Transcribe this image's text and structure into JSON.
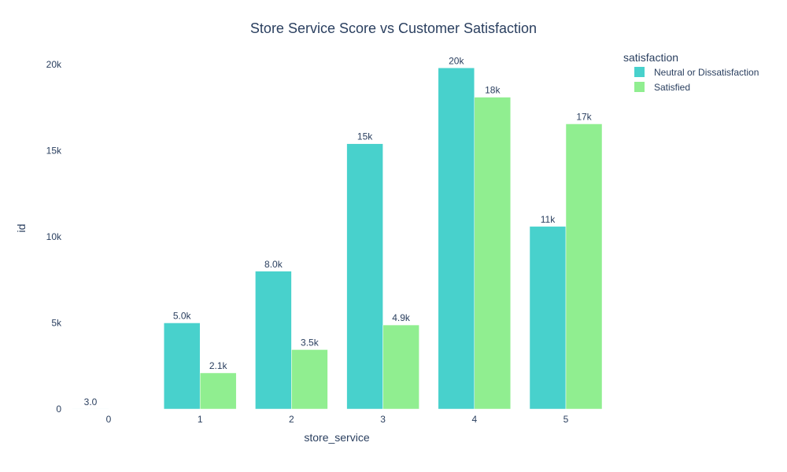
{
  "chart_data": {
    "type": "bar",
    "title": "Store Service Score vs Customer Satisfaction",
    "xlabel": "store_service",
    "ylabel": "id",
    "categories": [
      "0",
      "1",
      "2",
      "3",
      "4",
      "5"
    ],
    "ylim": [
      0,
      21000
    ],
    "yticks": [
      {
        "value": 0,
        "label": "0"
      },
      {
        "value": 5000,
        "label": "5k"
      },
      {
        "value": 10000,
        "label": "10k"
      },
      {
        "value": 15000,
        "label": "15k"
      },
      {
        "value": 20000,
        "label": "20k"
      }
    ],
    "grid": false,
    "legend": {
      "title": "satisfaction",
      "placement": "top-right"
    },
    "series": [
      {
        "name": "Neutral or Dissatisfaction",
        "color": "#48d1cc",
        "values": [
          3,
          5000,
          8000,
          15400,
          19800,
          10600
        ],
        "labels": [
          "3.0",
          "5.0k",
          "8.0k",
          "15k",
          "20k",
          "11k"
        ]
      },
      {
        "name": "Satisfied",
        "color": "#90ee90",
        "values": [
          null,
          2100,
          3450,
          4880,
          18100,
          16550
        ],
        "labels": [
          null,
          "2.1k",
          "3.5k",
          "4.9k",
          "18k",
          "17k"
        ]
      }
    ]
  }
}
